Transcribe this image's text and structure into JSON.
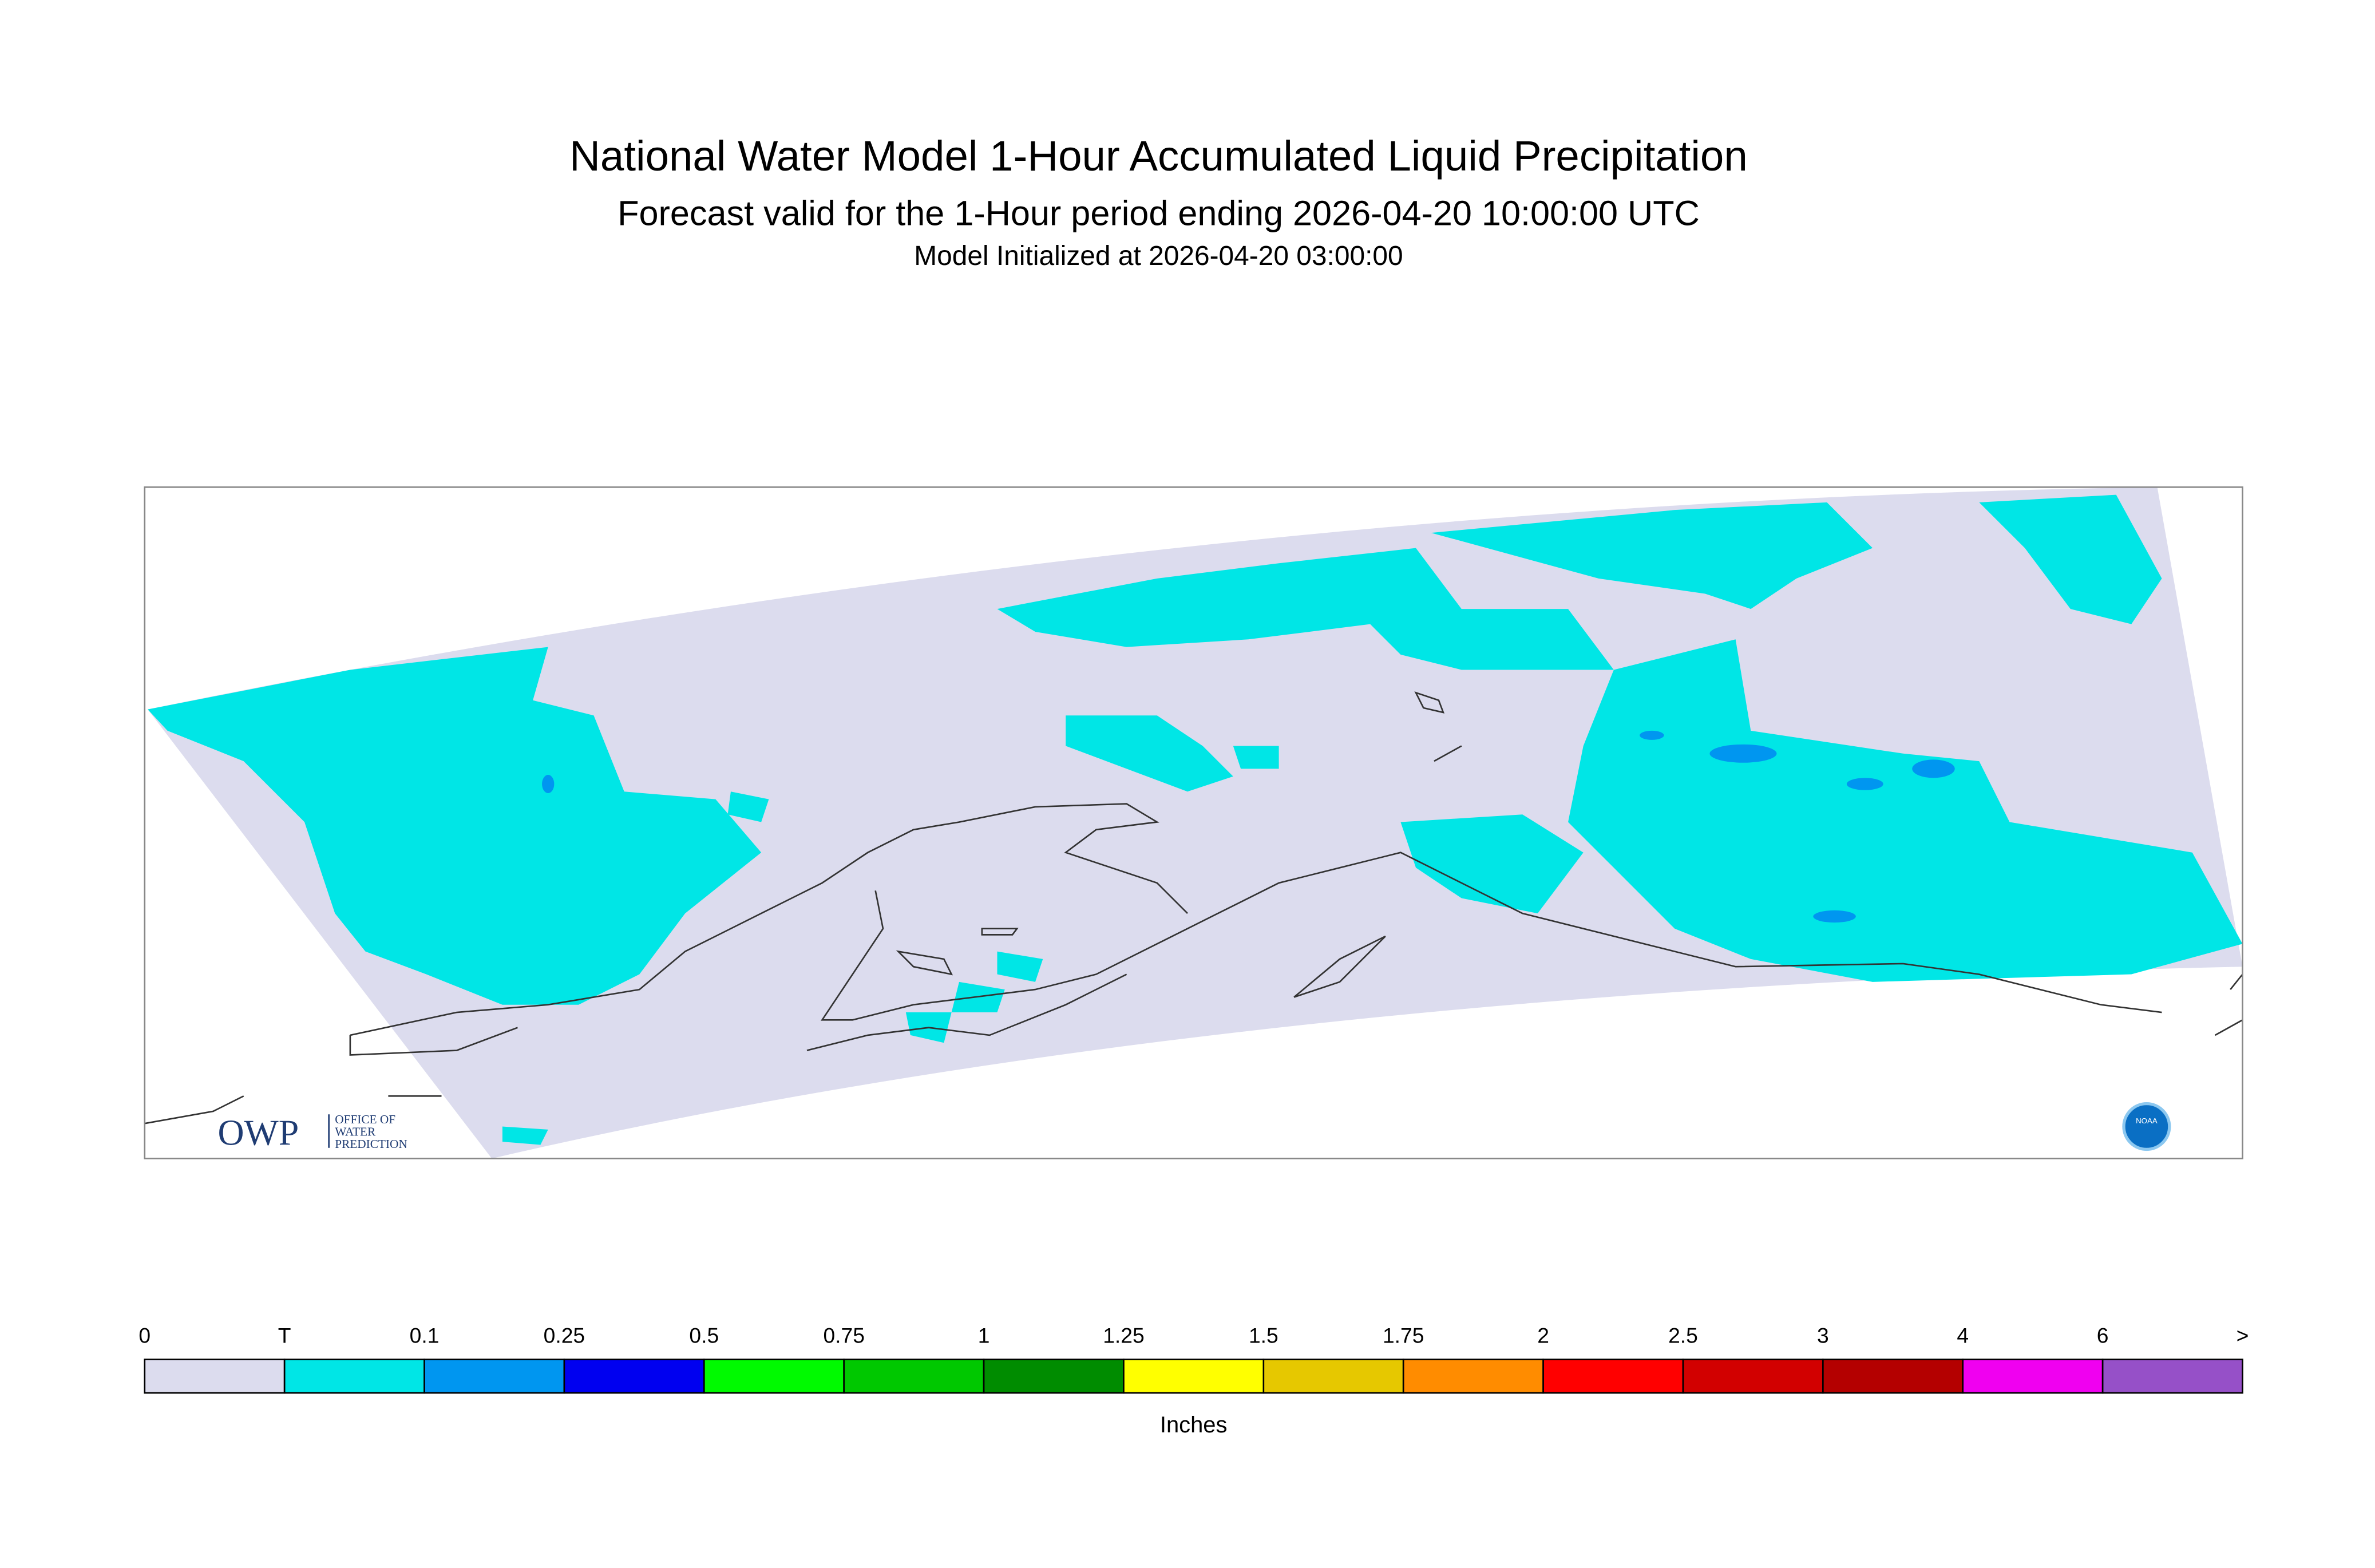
{
  "header": {
    "title": "National Water Model 1-Hour Accumulated Liquid Precipitation",
    "subtitle": "Forecast valid for the 1-Hour period ending 2026-04-20 10:00:00 UTC",
    "init": "Model Initialized at 2026-04-20 03:00:00"
  },
  "legend": {
    "labels": [
      "0",
      "T",
      "0.1",
      "0.25",
      "0.5",
      "0.75",
      "1",
      "1.25",
      "1.5",
      "1.75",
      "2",
      "2.5",
      "3",
      "4",
      "6",
      ">"
    ],
    "colors": [
      "#dcdcee",
      "#00e6e6",
      "#0096f0",
      "#0000f0",
      "#00fa00",
      "#00c800",
      "#008c00",
      "#ffff00",
      "#e6c800",
      "#ff8c00",
      "#ff0000",
      "#d20000",
      "#b40000",
      "#f000f0",
      "#9650c8"
    ],
    "unit": "Inches"
  },
  "logo": {
    "text": "OWP",
    "lines": [
      "OFFICE OF",
      "WATER",
      "PREDICTION"
    ],
    "badge": "NOAA"
  }
}
